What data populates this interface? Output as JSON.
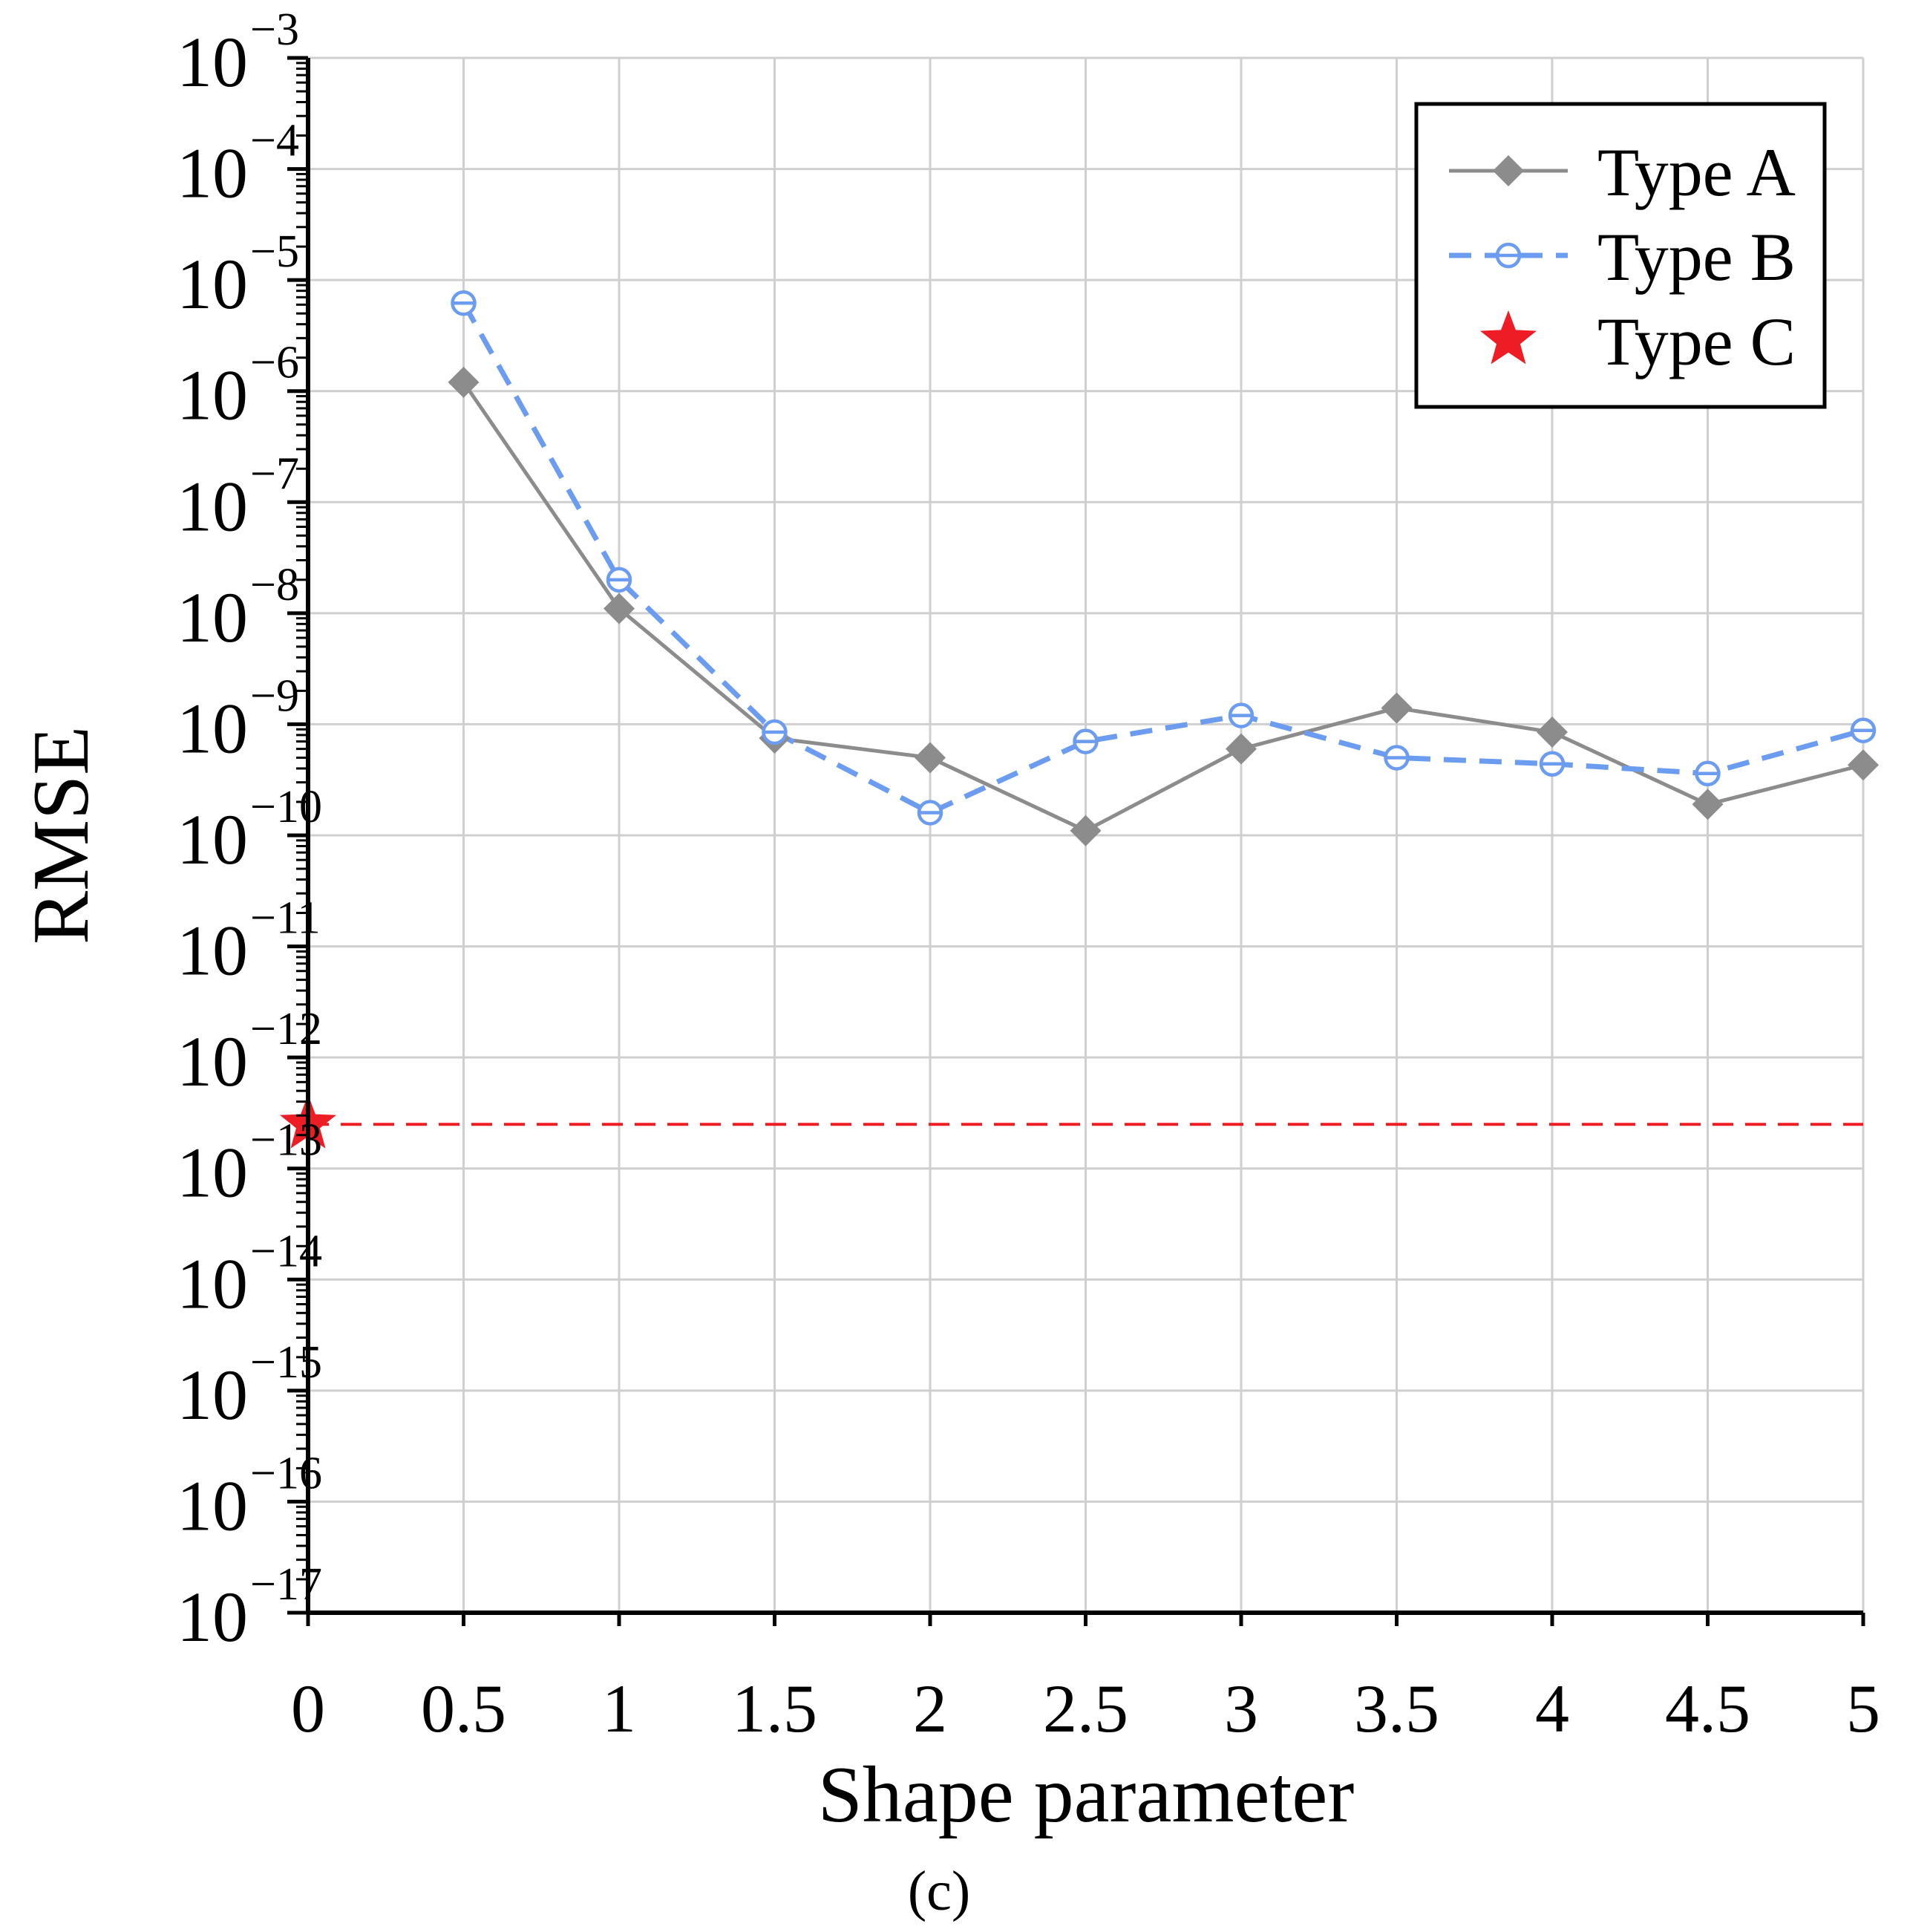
{
  "chart_data": {
    "type": "line",
    "title": "",
    "xlabel": "Shape parameter",
    "ylabel": "RMSE",
    "caption": "(c)",
    "y_scale": "log",
    "xlim": [
      0,
      5
    ],
    "ylim_exp": [
      -17,
      -3
    ],
    "grid": true,
    "legend_position": "top-right",
    "x_ticks": [
      "0",
      "0.5",
      "1",
      "1.5",
      "2",
      "2.5",
      "3",
      "3.5",
      "4",
      "4.5",
      "5"
    ],
    "y_ticks": [
      {
        "base": "10",
        "exp": "−3",
        "value": -3
      },
      {
        "base": "10",
        "exp": "−4",
        "value": -4
      },
      {
        "base": "10",
        "exp": "−5",
        "value": -5
      },
      {
        "base": "10",
        "exp": "−6",
        "value": -6
      },
      {
        "base": "10",
        "exp": "−7",
        "value": -7
      },
      {
        "base": "10",
        "exp": "−8",
        "value": -8
      },
      {
        "base": "10",
        "exp": "−9",
        "value": -9
      },
      {
        "base": "10",
        "exp": "−10",
        "value": -10
      },
      {
        "base": "10",
        "exp": "−11",
        "value": -11
      },
      {
        "base": "10",
        "exp": "−12",
        "value": -12
      },
      {
        "base": "10",
        "exp": "−13",
        "value": -13
      },
      {
        "base": "10",
        "exp": "−14",
        "value": -14
      },
      {
        "base": "10",
        "exp": "−15",
        "value": -15
      },
      {
        "base": "10",
        "exp": "−16",
        "value": -16
      },
      {
        "base": "10",
        "exp": "−17",
        "value": -17
      }
    ],
    "series": [
      {
        "name": "Type A",
        "color": "#8c8c8c",
        "marker": "diamond",
        "line_style": "solid",
        "x": [
          0.5,
          1,
          1.5,
          2,
          2.5,
          3,
          3.5,
          4,
          4.5,
          5
        ],
        "y": [
          1.2e-06,
          1.1e-08,
          7.5e-10,
          5e-10,
          1.1e-10,
          6e-10,
          1.4e-09,
          8.5e-10,
          1.9e-10,
          4.3e-10
        ]
      },
      {
        "name": "Type B",
        "color": "#6b9cf0",
        "marker": "open-circle",
        "line_style": "dashed",
        "x": [
          0.5,
          1,
          1.5,
          2,
          2.5,
          3,
          3.5,
          4,
          4.5,
          5
        ],
        "y": [
          6.2e-06,
          2e-08,
          8.5e-10,
          1.6e-10,
          7e-10,
          1.2e-09,
          5e-10,
          4.4e-10,
          3.6e-10,
          8.8e-10
        ]
      },
      {
        "name": "Type C",
        "color": "#ee1c25",
        "marker": "star",
        "line_style": "dashed-reference",
        "x": [
          0
        ],
        "y": [
          2.5e-13
        ]
      }
    ]
  }
}
